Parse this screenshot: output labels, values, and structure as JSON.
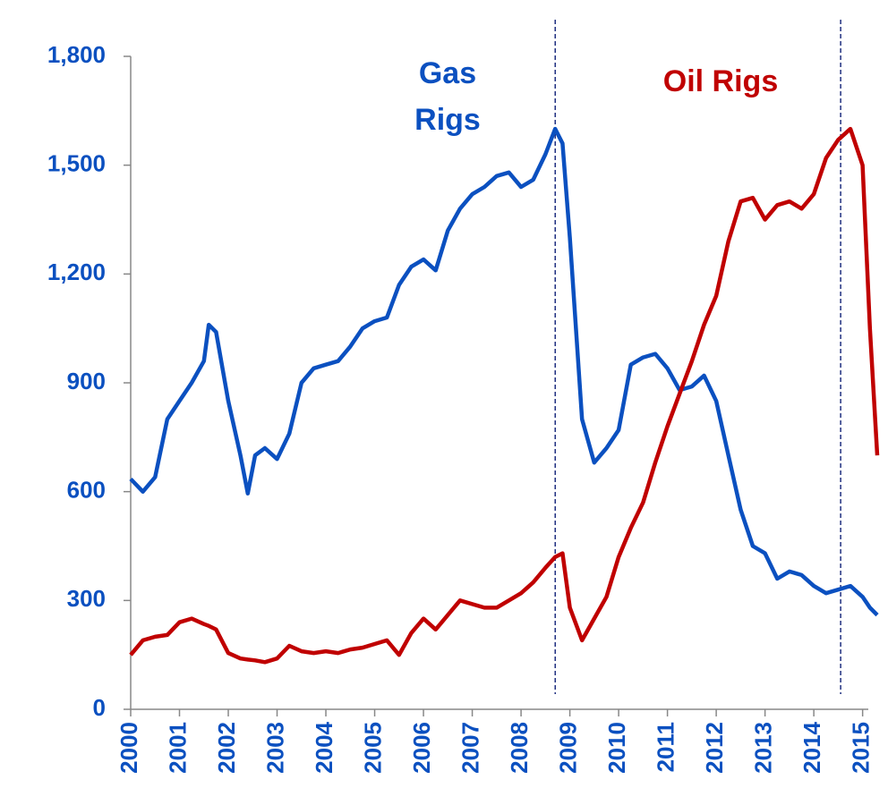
{
  "chart_data": {
    "type": "line",
    "xlim": [
      2000,
      2015.3
    ],
    "ylim": [
      0,
      1800
    ],
    "xticks": [
      2000,
      2001,
      2002,
      2003,
      2004,
      2005,
      2006,
      2007,
      2008,
      2009,
      2010,
      2011,
      2012,
      2013,
      2014,
      2015
    ],
    "yticks": [
      0,
      300,
      {
        "value": 600,
        "label": "600"
      },
      900,
      {
        "value": 1200,
        "label": "1,200"
      },
      {
        "value": 1500,
        "label": "1,500"
      },
      {
        "value": 1800,
        "label": "1,800"
      }
    ],
    "tick_color": "#0b50c0",
    "reference_lines_x": [
      2008.7,
      2014.55
    ],
    "annotations": [
      {
        "lines": [
          "Gas",
          "Rigs"
        ],
        "color": "#0b50c0"
      },
      {
        "lines": [
          "Oil Rigs"
        ],
        "color": "#c00000"
      }
    ],
    "x": [
      2000,
      2000.25,
      2000.5,
      2000.75,
      2001,
      2001.25,
      2001.5,
      2001.6,
      2001.75,
      2002,
      2002.25,
      2002.4,
      2002.55,
      2002.75,
      2003,
      2003.25,
      2003.5,
      2003.75,
      2004,
      2004.25,
      2004.5,
      2004.75,
      2005,
      2005.25,
      2005.5,
      2005.75,
      2006,
      2006.25,
      2006.5,
      2006.75,
      2007,
      2007.25,
      2007.5,
      2007.75,
      2008,
      2008.25,
      2008.5,
      2008.7,
      2008.85,
      2009,
      2009.25,
      2009.5,
      2009.75,
      2010,
      2010.25,
      2010.5,
      2010.75,
      2011,
      2011.25,
      2011.5,
      2011.75,
      2012,
      2012.25,
      2012.5,
      2012.75,
      2013,
      2013.25,
      2013.5,
      2013.75,
      2014,
      2014.25,
      2014.5,
      2014.75,
      2015,
      2015.15,
      2015.3
    ],
    "series": [
      {
        "name": "Gas Rigs",
        "color": "#0b50c0",
        "values": [
          635,
          600,
          640,
          800,
          850,
          900,
          960,
          1060,
          1040,
          850,
          700,
          595,
          700,
          720,
          690,
          760,
          900,
          940,
          950,
          960,
          1000,
          1050,
          1070,
          1080,
          1170,
          1220,
          1240,
          1210,
          1320,
          1380,
          1420,
          1440,
          1470,
          1480,
          1440,
          1460,
          1530,
          1600,
          1560,
          1300,
          800,
          680,
          720,
          770,
          950,
          970,
          980,
          940,
          880,
          890,
          920,
          850,
          700,
          550,
          450,
          430,
          360,
          380,
          370,
          340,
          320,
          330,
          340,
          310,
          280,
          260
        ]
      },
      {
        "name": "Oil Rigs",
        "color": "#c00000",
        "values": [
          150,
          190,
          200,
          205,
          240,
          250,
          235,
          230,
          220,
          155,
          140,
          137,
          135,
          130,
          140,
          175,
          160,
          155,
          160,
          155,
          165,
          170,
          180,
          190,
          150,
          210,
          250,
          220,
          260,
          300,
          290,
          280,
          280,
          300,
          320,
          350,
          390,
          420,
          430,
          280,
          190,
          250,
          310,
          420,
          500,
          570,
          680,
          780,
          870,
          960,
          1060,
          1140,
          1290,
          1400,
          1410,
          1350,
          1390,
          1400,
          1380,
          1420,
          1520,
          1570,
          1600,
          1500,
          1050,
          700
        ]
      }
    ]
  }
}
